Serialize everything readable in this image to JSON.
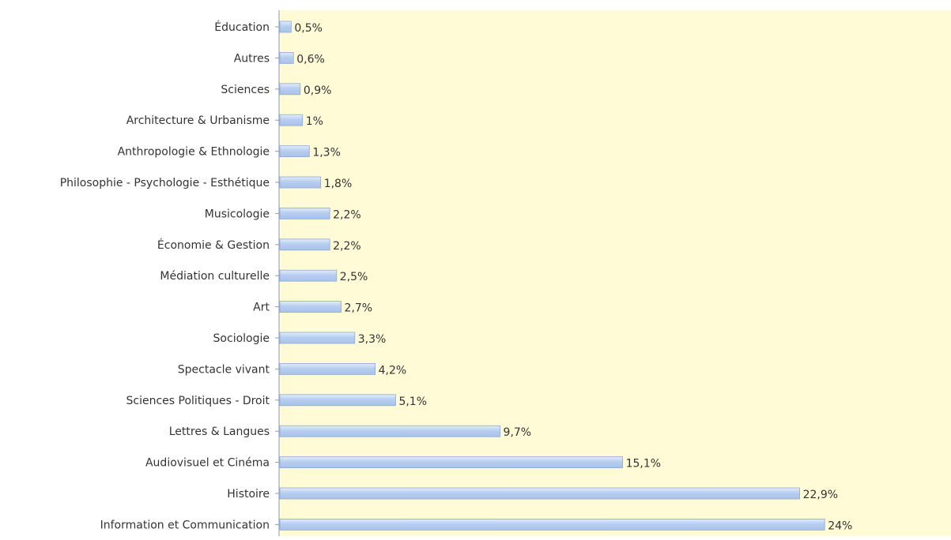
{
  "chart_data": {
    "type": "bar",
    "orientation": "horizontal",
    "categories": [
      "Éducation",
      "Autres",
      "Sciences",
      "Architecture & Urbanisme",
      "Anthropologie & Ethnologie",
      "Philosophie - Psychologie - Esthétique",
      "Musicologie",
      "Économie & Gestion",
      "Médiation culturelle",
      "Art",
      "Sociologie",
      "Spectacle vivant",
      "Sciences Politiques - Droit",
      "Lettres & Langues",
      "Audiovisuel et Cinéma",
      "Histoire",
      "Information et Communication"
    ],
    "values": [
      0.5,
      0.6,
      0.9,
      1,
      1.3,
      1.8,
      2.2,
      2.2,
      2.5,
      2.7,
      3.3,
      4.2,
      5.1,
      9.7,
      15.1,
      22.9,
      24
    ],
    "value_labels": [
      "0,5%",
      "0,6%",
      "0,9%",
      "1%",
      "1,3%",
      "1,8%",
      "2,2%",
      "2,2%",
      "2,5%",
      "2,7%",
      "3,3%",
      "4,2%",
      "5,1%",
      "9,7%",
      "15,1%",
      "22,9%",
      "24%"
    ],
    "xlim": [
      0,
      29.6
    ],
    "grid": false,
    "legend": "none",
    "colors": {
      "plot_background": "#fffbd6",
      "bar_fill": "#b7cef0",
      "bar_highlight": "#e3edfb",
      "bar_stroke": "#8eaad8",
      "axis": "#8a9bb0",
      "text": "#333333"
    }
  }
}
